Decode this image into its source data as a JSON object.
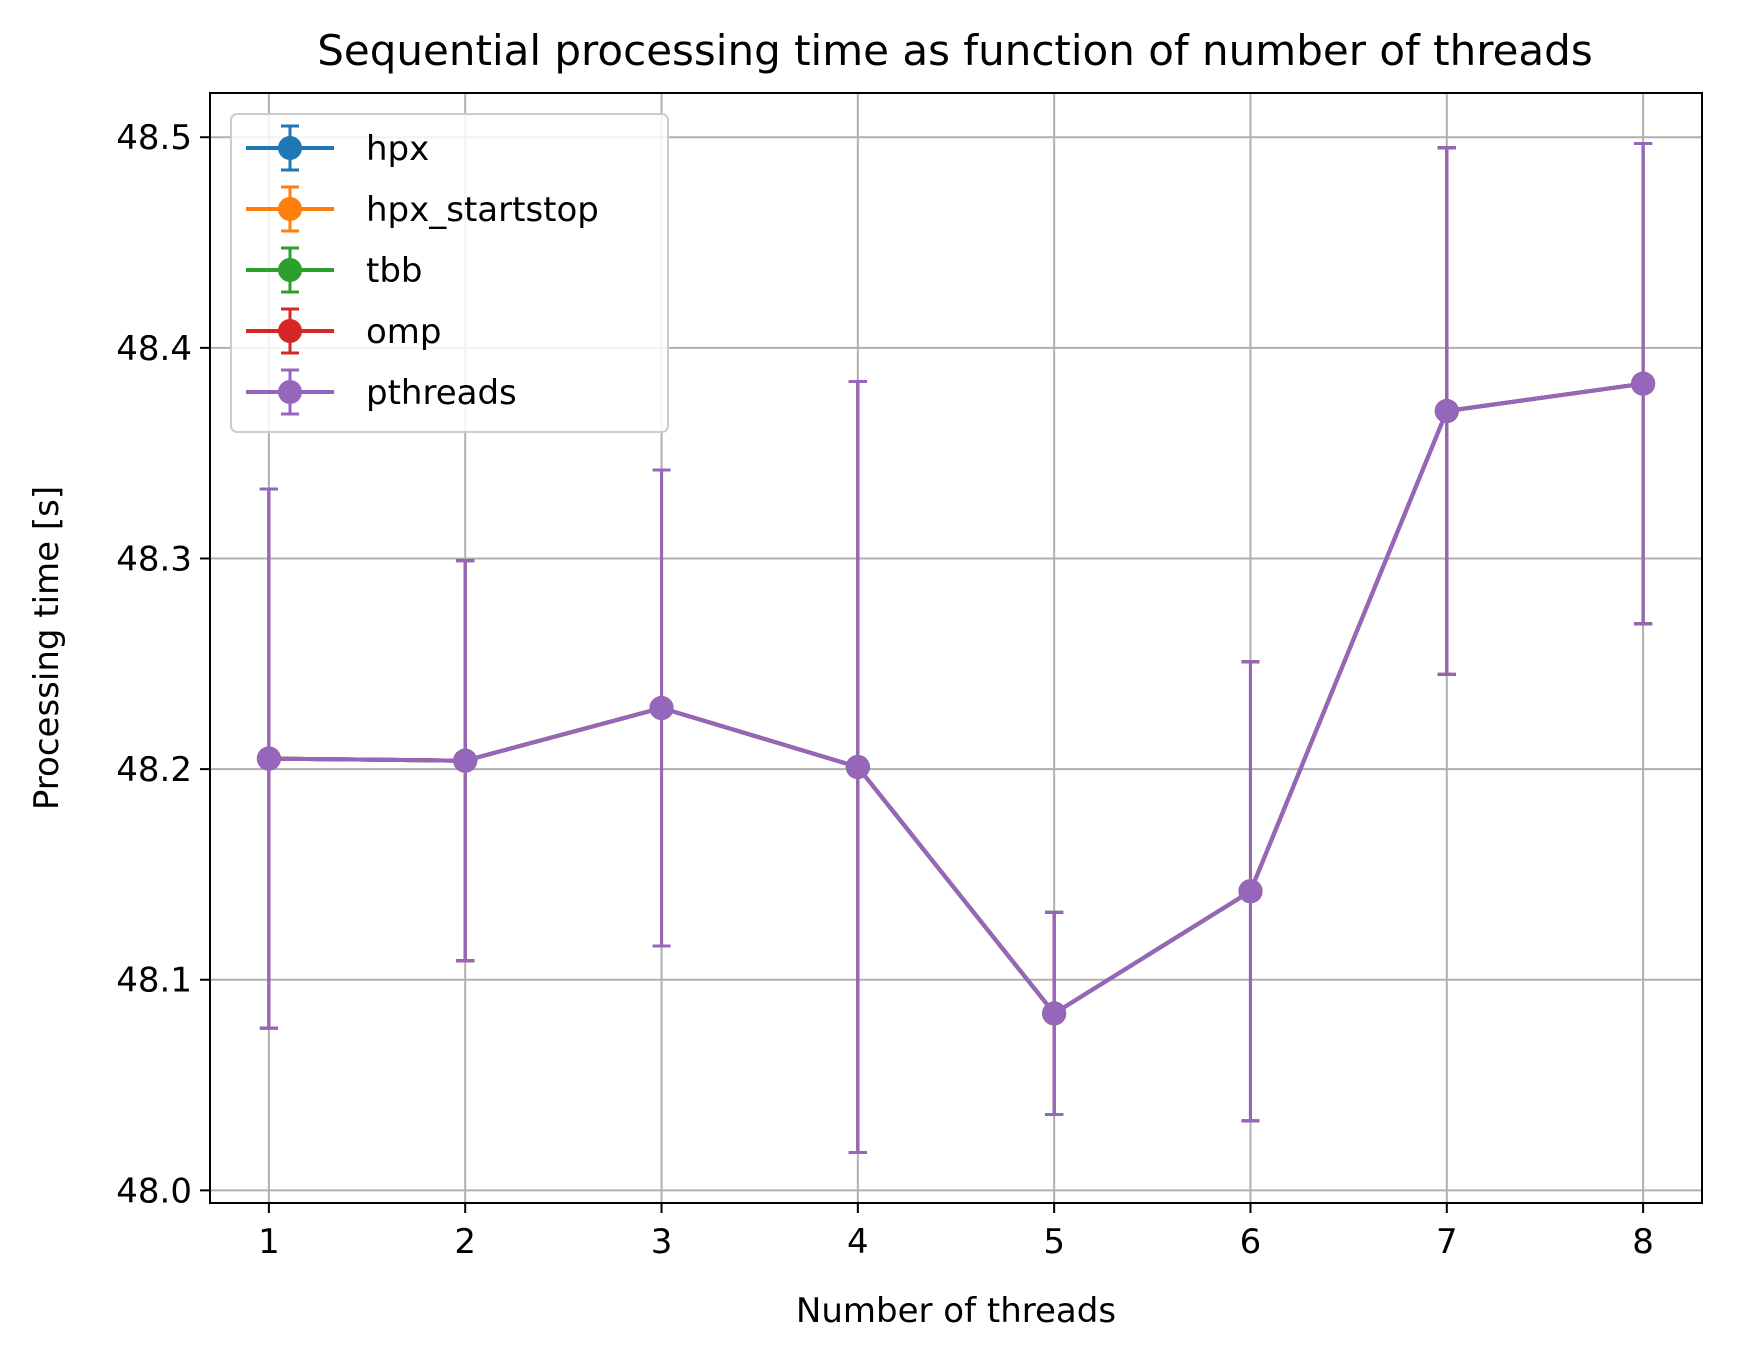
{
  "chart_data": {
    "type": "line",
    "title": "Sequential processing time as function of number of threads",
    "xlabel": "Number of threads",
    "ylabel": "Processing time [s]",
    "x": [
      1,
      2,
      3,
      4,
      5,
      6,
      7,
      8
    ],
    "xlim": [
      0.7,
      8.3
    ],
    "ylim": [
      47.994,
      48.521
    ],
    "xticks": [
      1,
      2,
      3,
      4,
      5,
      6,
      7,
      8
    ],
    "yticks": [
      48.0,
      48.1,
      48.2,
      48.3,
      48.4,
      48.5
    ],
    "ytick_labels": [
      "48.0",
      "48.1",
      "48.2",
      "48.3",
      "48.4",
      "48.5"
    ],
    "grid": true,
    "legend_position": "upper-left",
    "series": [
      {
        "name": "hpx",
        "color": "#1f77b4",
        "values": [
          48.205,
          48.204,
          48.229,
          48.201,
          48.084,
          48.142,
          48.37,
          48.383
        ],
        "errors": [
          0.128,
          0.095,
          0.113,
          0.183,
          0.048,
          0.109,
          0.125,
          0.114
        ]
      },
      {
        "name": "hpx_startstop",
        "color": "#ff7f0e",
        "values": [
          48.205,
          48.204,
          48.229,
          48.201,
          48.084,
          48.142,
          48.37,
          48.383
        ],
        "errors": [
          0.128,
          0.095,
          0.113,
          0.183,
          0.048,
          0.109,
          0.125,
          0.114
        ]
      },
      {
        "name": "tbb",
        "color": "#2ca02c",
        "values": [
          48.205,
          48.204,
          48.229,
          48.201,
          48.084,
          48.142,
          48.37,
          48.383
        ],
        "errors": [
          0.128,
          0.095,
          0.113,
          0.183,
          0.048,
          0.109,
          0.125,
          0.114
        ]
      },
      {
        "name": "omp",
        "color": "#d62728",
        "values": [
          48.205,
          48.204,
          48.229,
          48.201,
          48.084,
          48.142,
          48.37,
          48.383
        ],
        "errors": [
          0.128,
          0.095,
          0.113,
          0.183,
          0.048,
          0.109,
          0.125,
          0.114
        ]
      },
      {
        "name": "pthreads",
        "color": "#9467bd",
        "values": [
          48.205,
          48.204,
          48.229,
          48.201,
          48.084,
          48.142,
          48.37,
          48.383
        ],
        "errors": [
          0.128,
          0.095,
          0.113,
          0.183,
          0.048,
          0.109,
          0.125,
          0.114
        ]
      }
    ]
  }
}
